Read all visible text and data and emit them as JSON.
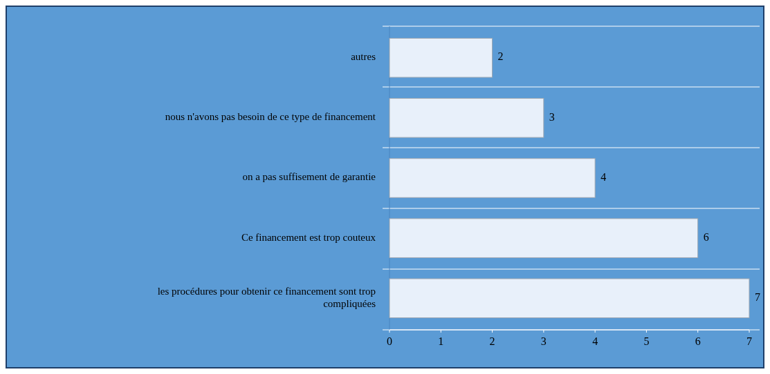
{
  "chart_data": {
    "type": "bar",
    "orientation": "horizontal",
    "categories": [
      "autres",
      "nous n'avons pas besoin de ce type de financement",
      "on a pas suffisement de garantie",
      "Ce financement  est trop couteux",
      "les procédures pour obtenir ce financement  sont trop compliquées"
    ],
    "values": [
      2,
      3,
      4,
      6,
      7
    ],
    "color": "#e8f0fa",
    "xlim": [
      0,
      7
    ],
    "xticks": [
      0,
      1,
      2,
      3,
      4,
      5,
      6,
      7
    ],
    "grid": "y",
    "data_labels": true
  }
}
